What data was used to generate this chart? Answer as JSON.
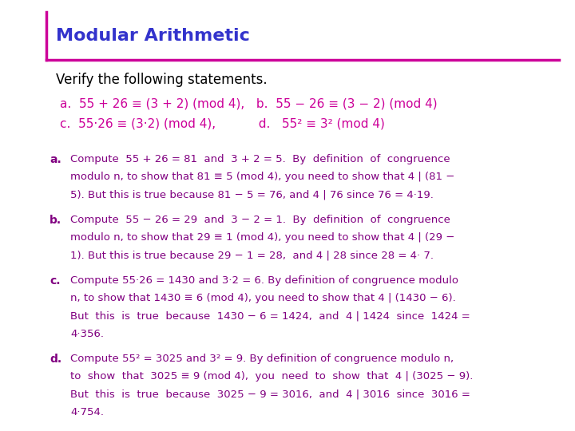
{
  "title": "Modular Arithmetic",
  "title_color": "#3333CC",
  "line_color": "#CC0099",
  "background_color": "#FFFFFF",
  "subtitle": "Verify the following statements.",
  "subtitle_color": "#000000",
  "statement_color": "#CC0099",
  "label_bold_color": "#800080",
  "body_color": "#800080",
  "figwidth": 7.2,
  "figheight": 5.4,
  "dpi": 100
}
